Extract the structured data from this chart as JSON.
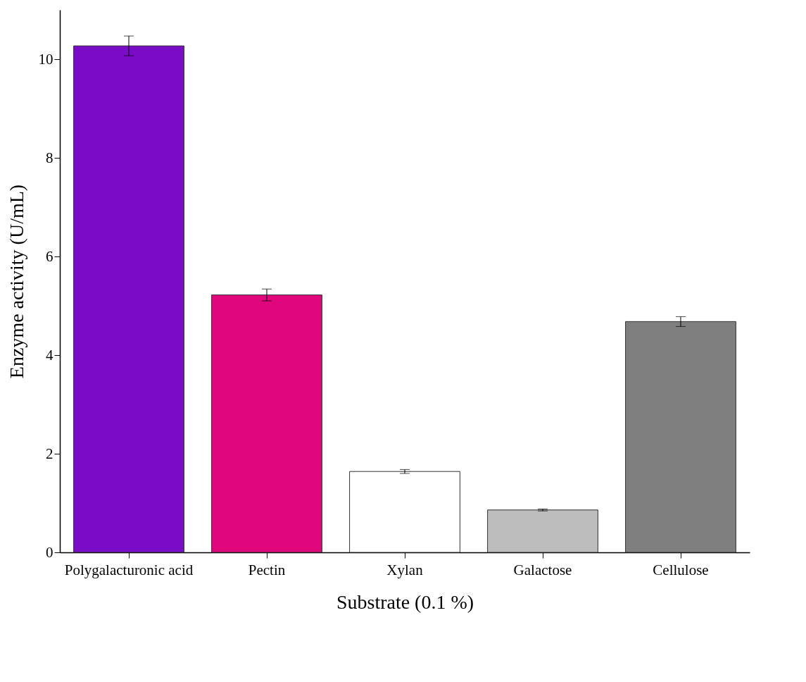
{
  "chart_data": {
    "type": "bar",
    "xlabel": "Substrate (0.1 %)",
    "ylabel": "Enzyme activity (U/mL)",
    "categories": [
      "Polygalacturonic acid",
      "Pectin",
      "Xylan",
      "Galactose",
      "Cellulose"
    ],
    "values": [
      10.27,
      5.22,
      1.64,
      0.86,
      4.68
    ],
    "errors": [
      0.2,
      0.12,
      0.04,
      0.02,
      0.1
    ],
    "colors": [
      "#7a0bc6",
      "#e0077d",
      "#ffffff",
      "#bdbdbd",
      "#7f7f7f"
    ],
    "ylim": [
      0,
      11
    ],
    "yticks": [
      0,
      2,
      4,
      6,
      8,
      10
    ],
    "grid": false,
    "legend": false
  }
}
